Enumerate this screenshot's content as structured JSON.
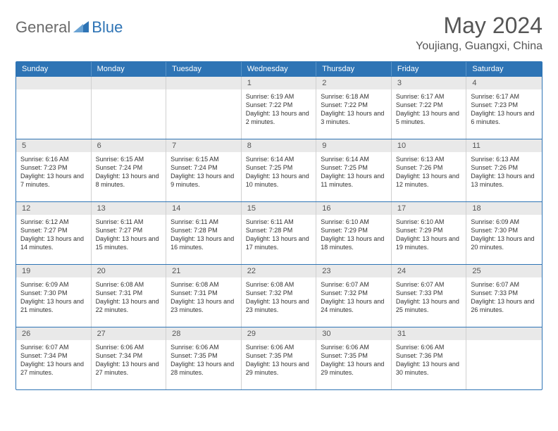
{
  "brand": {
    "general": "General",
    "blue": "Blue"
  },
  "header": {
    "title": "May 2024",
    "location": "Youjiang, Guangxi, China"
  },
  "style": {
    "accent": "#2e74b5",
    "header_bg": "#2e74b5",
    "daynum_bg": "#e9e9e9",
    "border": "#d0d0d0",
    "text": "#333333",
    "title_fontsize": 32,
    "location_fontsize": 16,
    "weekday_fontsize": 11,
    "daynum_fontsize": 11,
    "body_fontsize": 9
  },
  "calendar": {
    "weekdays": [
      "Sunday",
      "Monday",
      "Tuesday",
      "Wednesday",
      "Thursday",
      "Friday",
      "Saturday"
    ],
    "weeks": [
      [
        null,
        null,
        null,
        {
          "n": "1",
          "sunrise": "6:19 AM",
          "sunset": "7:22 PM",
          "daylight": "13 hours and 2 minutes."
        },
        {
          "n": "2",
          "sunrise": "6:18 AM",
          "sunset": "7:22 PM",
          "daylight": "13 hours and 3 minutes."
        },
        {
          "n": "3",
          "sunrise": "6:17 AM",
          "sunset": "7:22 PM",
          "daylight": "13 hours and 5 minutes."
        },
        {
          "n": "4",
          "sunrise": "6:17 AM",
          "sunset": "7:23 PM",
          "daylight": "13 hours and 6 minutes."
        }
      ],
      [
        {
          "n": "5",
          "sunrise": "6:16 AM",
          "sunset": "7:23 PM",
          "daylight": "13 hours and 7 minutes."
        },
        {
          "n": "6",
          "sunrise": "6:15 AM",
          "sunset": "7:24 PM",
          "daylight": "13 hours and 8 minutes."
        },
        {
          "n": "7",
          "sunrise": "6:15 AM",
          "sunset": "7:24 PM",
          "daylight": "13 hours and 9 minutes."
        },
        {
          "n": "8",
          "sunrise": "6:14 AM",
          "sunset": "7:25 PM",
          "daylight": "13 hours and 10 minutes."
        },
        {
          "n": "9",
          "sunrise": "6:14 AM",
          "sunset": "7:25 PM",
          "daylight": "13 hours and 11 minutes."
        },
        {
          "n": "10",
          "sunrise": "6:13 AM",
          "sunset": "7:26 PM",
          "daylight": "13 hours and 12 minutes."
        },
        {
          "n": "11",
          "sunrise": "6:13 AM",
          "sunset": "7:26 PM",
          "daylight": "13 hours and 13 minutes."
        }
      ],
      [
        {
          "n": "12",
          "sunrise": "6:12 AM",
          "sunset": "7:27 PM",
          "daylight": "13 hours and 14 minutes."
        },
        {
          "n": "13",
          "sunrise": "6:11 AM",
          "sunset": "7:27 PM",
          "daylight": "13 hours and 15 minutes."
        },
        {
          "n": "14",
          "sunrise": "6:11 AM",
          "sunset": "7:28 PM",
          "daylight": "13 hours and 16 minutes."
        },
        {
          "n": "15",
          "sunrise": "6:11 AM",
          "sunset": "7:28 PM",
          "daylight": "13 hours and 17 minutes."
        },
        {
          "n": "16",
          "sunrise": "6:10 AM",
          "sunset": "7:29 PM",
          "daylight": "13 hours and 18 minutes."
        },
        {
          "n": "17",
          "sunrise": "6:10 AM",
          "sunset": "7:29 PM",
          "daylight": "13 hours and 19 minutes."
        },
        {
          "n": "18",
          "sunrise": "6:09 AM",
          "sunset": "7:30 PM",
          "daylight": "13 hours and 20 minutes."
        }
      ],
      [
        {
          "n": "19",
          "sunrise": "6:09 AM",
          "sunset": "7:30 PM",
          "daylight": "13 hours and 21 minutes."
        },
        {
          "n": "20",
          "sunrise": "6:08 AM",
          "sunset": "7:31 PM",
          "daylight": "13 hours and 22 minutes."
        },
        {
          "n": "21",
          "sunrise": "6:08 AM",
          "sunset": "7:31 PM",
          "daylight": "13 hours and 23 minutes."
        },
        {
          "n": "22",
          "sunrise": "6:08 AM",
          "sunset": "7:32 PM",
          "daylight": "13 hours and 23 minutes."
        },
        {
          "n": "23",
          "sunrise": "6:07 AM",
          "sunset": "7:32 PM",
          "daylight": "13 hours and 24 minutes."
        },
        {
          "n": "24",
          "sunrise": "6:07 AM",
          "sunset": "7:33 PM",
          "daylight": "13 hours and 25 minutes."
        },
        {
          "n": "25",
          "sunrise": "6:07 AM",
          "sunset": "7:33 PM",
          "daylight": "13 hours and 26 minutes."
        }
      ],
      [
        {
          "n": "26",
          "sunrise": "6:07 AM",
          "sunset": "7:34 PM",
          "daylight": "13 hours and 27 minutes."
        },
        {
          "n": "27",
          "sunrise": "6:06 AM",
          "sunset": "7:34 PM",
          "daylight": "13 hours and 27 minutes."
        },
        {
          "n": "28",
          "sunrise": "6:06 AM",
          "sunset": "7:35 PM",
          "daylight": "13 hours and 28 minutes."
        },
        {
          "n": "29",
          "sunrise": "6:06 AM",
          "sunset": "7:35 PM",
          "daylight": "13 hours and 29 minutes."
        },
        {
          "n": "30",
          "sunrise": "6:06 AM",
          "sunset": "7:35 PM",
          "daylight": "13 hours and 29 minutes."
        },
        {
          "n": "31",
          "sunrise": "6:06 AM",
          "sunset": "7:36 PM",
          "daylight": "13 hours and 30 minutes."
        },
        null
      ]
    ]
  },
  "labels": {
    "sunrise": "Sunrise",
    "sunset": "Sunset",
    "daylight": "Daylight"
  }
}
